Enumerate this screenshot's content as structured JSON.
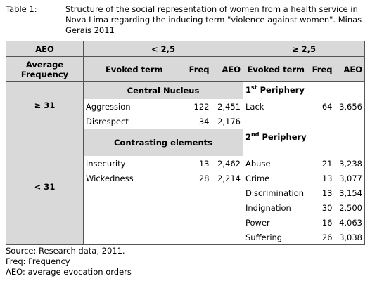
{
  "caption": {
    "label": "Table 1:",
    "text": "Structure of the social representation of women from a health service in Nova Lima regarding the inducing term \"violence against women\". Minas Gerais 2011"
  },
  "table": {
    "top_header": [
      "AEO",
      "< 2,5",
      "≥ 2,5"
    ],
    "sub_header": [
      "Average Frequency",
      "Evoked term",
      "Freq",
      "AEO",
      "Evoked term",
      "Freq",
      "AEO"
    ],
    "groups": [
      {
        "frequency": "≥ 31",
        "left": {
          "title": "Central Nucleus",
          "rows": [
            [
              "Aggression",
              "122",
              "2,451"
            ],
            [
              "Disrespect",
              "34",
              "2,176"
            ]
          ]
        },
        "right": {
          "ordinal": "1",
          "suffix": "st",
          "title": "Periphery",
          "rows": [
            [
              "Lack",
              "64",
              "3,656"
            ]
          ]
        }
      },
      {
        "frequency": "< 31",
        "left": {
          "title": "Contrasting elements",
          "rows": [
            [
              "insecurity",
              "13",
              "2,462"
            ],
            [
              "Wickedness",
              "28",
              "2,214"
            ]
          ]
        },
        "right": {
          "ordinal": "2",
          "suffix": "nd",
          "title": "Periphery",
          "rows": [
            [
              "Abuse",
              "21",
              "3,238"
            ],
            [
              "Crime",
              "13",
              "3,077"
            ],
            [
              "Discrimination",
              "13",
              "3,154"
            ],
            [
              "Indignation",
              "30",
              "2,500"
            ],
            [
              "Power",
              "16",
              "4,063"
            ],
            [
              "Suffering",
              "26",
              "3,038"
            ]
          ]
        }
      }
    ]
  },
  "footnotes": [
    "Source: Research data, 2011.",
    "Freq: Frequency",
    "AEO: average evocation orders"
  ]
}
